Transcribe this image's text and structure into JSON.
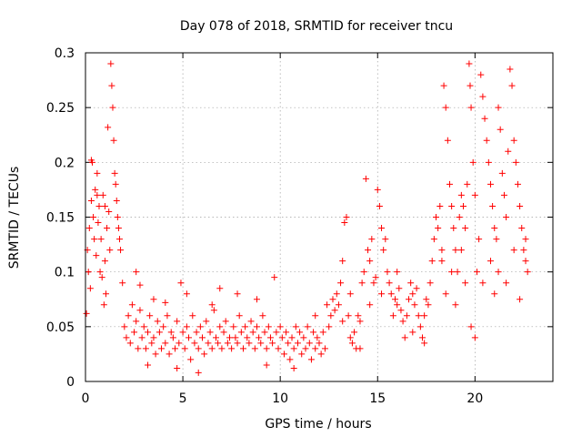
{
  "chart_data": {
    "type": "scatter",
    "title": "Day 078 of 2018, SRMTID for receiver tncu",
    "xlabel": "GPS time / hours",
    "ylabel": "SRMTID / TECUs",
    "xlim": [
      0,
      24
    ],
    "ylim": [
      0,
      0.3
    ],
    "grid": true,
    "marker": "+",
    "color": "#ff0000",
    "x_ticks": [
      0,
      5,
      10,
      15,
      20
    ],
    "x_tick_labels": [
      "0",
      "5",
      "10",
      "15",
      "20"
    ],
    "y_ticks": [
      0,
      0.05,
      0.1,
      0.15,
      0.2,
      0.25,
      0.3
    ],
    "y_tick_labels": [
      "0",
      "0.05",
      "0.1",
      "0.15",
      "0.2",
      "0.25",
      "0.3"
    ],
    "series": [
      {
        "points": [
          [
            0.05,
            0.062
          ],
          [
            0.1,
            0.12
          ],
          [
            0.2,
            0.14
          ],
          [
            0.3,
            0.165
          ],
          [
            0.35,
            0.2
          ],
          [
            0.4,
            0.15
          ],
          [
            0.5,
            0.175
          ],
          [
            0.6,
            0.19
          ],
          [
            0.7,
            0.16
          ],
          [
            0.8,
            0.13
          ],
          [
            0.9,
            0.17
          ],
          [
            1.0,
            0.11
          ],
          [
            1.1,
            0.14
          ],
          [
            1.2,
            0.155
          ],
          [
            1.3,
            0.29
          ],
          [
            1.35,
            0.27
          ],
          [
            1.4,
            0.25
          ],
          [
            1.45,
            0.22
          ],
          [
            1.5,
            0.19
          ],
          [
            1.55,
            0.18
          ],
          [
            1.6,
            0.165
          ],
          [
            1.7,
            0.14
          ],
          [
            1.8,
            0.12
          ],
          [
            1.9,
            0.09
          ],
          [
            0.15,
            0.1
          ],
          [
            0.25,
            0.085
          ],
          [
            0.45,
            0.13
          ],
          [
            0.55,
            0.115
          ],
          [
            0.65,
            0.145
          ],
          [
            0.75,
            0.1
          ],
          [
            0.85,
            0.095
          ],
          [
            0.95,
            0.07
          ],
          [
            1.05,
            0.08
          ],
          [
            1.15,
            0.232
          ],
          [
            1.25,
            0.12
          ],
          [
            1.65,
            0.15
          ],
          [
            1.75,
            0.13
          ],
          [
            0.3,
            0.202
          ],
          [
            0.6,
            0.17
          ],
          [
            1.0,
            0.16
          ],
          [
            2.0,
            0.05
          ],
          [
            2.1,
            0.04
          ],
          [
            2.2,
            0.06
          ],
          [
            2.3,
            0.035
          ],
          [
            2.4,
            0.07
          ],
          [
            2.5,
            0.045
          ],
          [
            2.6,
            0.055
          ],
          [
            2.7,
            0.03
          ],
          [
            2.8,
            0.065
          ],
          [
            2.9,
            0.04
          ],
          [
            3.0,
            0.05
          ],
          [
            3.1,
            0.03
          ],
          [
            3.2,
            0.045
          ],
          [
            3.3,
            0.06
          ],
          [
            3.4,
            0.035
          ],
          [
            3.5,
            0.04
          ],
          [
            3.6,
            0.025
          ],
          [
            3.7,
            0.055
          ],
          [
            3.8,
            0.045
          ],
          [
            3.9,
            0.03
          ],
          [
            4.0,
            0.05
          ],
          [
            4.1,
            0.035
          ],
          [
            4.2,
            0.06
          ],
          [
            4.3,
            0.025
          ],
          [
            4.4,
            0.045
          ],
          [
            4.5,
            0.04
          ],
          [
            4.6,
            0.03
          ],
          [
            4.7,
            0.055
          ],
          [
            4.8,
            0.035
          ],
          [
            4.9,
            0.09
          ],
          [
            5.0,
            0.045
          ],
          [
            5.1,
            0.03
          ],
          [
            5.2,
            0.05
          ],
          [
            5.3,
            0.04
          ],
          [
            5.4,
            0.02
          ],
          [
            5.5,
            0.06
          ],
          [
            5.6,
            0.035
          ],
          [
            5.7,
            0.045
          ],
          [
            5.8,
            0.03
          ],
          [
            5.9,
            0.05
          ],
          [
            6.0,
            0.04
          ],
          [
            6.1,
            0.025
          ],
          [
            6.2,
            0.055
          ],
          [
            6.3,
            0.035
          ],
          [
            6.4,
            0.045
          ],
          [
            6.5,
            0.03
          ],
          [
            6.6,
            0.065
          ],
          [
            6.7,
            0.04
          ],
          [
            6.8,
            0.035
          ],
          [
            6.9,
            0.05
          ],
          [
            7.0,
            0.03
          ],
          [
            7.1,
            0.045
          ],
          [
            7.2,
            0.055
          ],
          [
            7.3,
            0.035
          ],
          [
            7.4,
            0.04
          ],
          [
            7.5,
            0.03
          ],
          [
            7.6,
            0.05
          ],
          [
            7.7,
            0.04
          ],
          [
            7.8,
            0.035
          ],
          [
            7.9,
            0.06
          ],
          [
            8.0,
            0.045
          ],
          [
            8.1,
            0.03
          ],
          [
            8.2,
            0.05
          ],
          [
            8.3,
            0.04
          ],
          [
            8.4,
            0.035
          ],
          [
            8.5,
            0.055
          ],
          [
            8.6,
            0.045
          ],
          [
            8.7,
            0.03
          ],
          [
            8.8,
            0.05
          ],
          [
            8.9,
            0.04
          ],
          [
            9.0,
            0.035
          ],
          [
            9.1,
            0.06
          ],
          [
            9.2,
            0.045
          ],
          [
            9.3,
            0.03
          ],
          [
            9.4,
            0.05
          ],
          [
            9.5,
            0.04
          ],
          [
            9.6,
            0.035
          ],
          [
            9.7,
            0.095
          ],
          [
            9.8,
            0.045
          ],
          [
            9.9,
            0.03
          ],
          [
            10.0,
            0.05
          ],
          [
            10.1,
            0.04
          ],
          [
            10.2,
            0.025
          ],
          [
            10.3,
            0.045
          ],
          [
            10.4,
            0.035
          ],
          [
            10.5,
            0.02
          ],
          [
            10.6,
            0.04
          ],
          [
            10.7,
            0.03
          ],
          [
            10.8,
            0.05
          ],
          [
            10.9,
            0.035
          ],
          [
            11.0,
            0.045
          ],
          [
            11.1,
            0.025
          ],
          [
            11.2,
            0.04
          ],
          [
            11.3,
            0.03
          ],
          [
            11.4,
            0.05
          ],
          [
            11.5,
            0.035
          ],
          [
            11.6,
            0.02
          ],
          [
            11.7,
            0.045
          ],
          [
            11.8,
            0.03
          ],
          [
            11.9,
            0.04
          ],
          [
            12.0,
            0.035
          ],
          [
            12.1,
            0.025
          ],
          [
            12.2,
            0.045
          ],
          [
            12.3,
            0.03
          ],
          [
            3.2,
            0.015
          ],
          [
            4.7,
            0.012
          ],
          [
            5.8,
            0.008
          ],
          [
            6.5,
            0.07
          ],
          [
            7.8,
            0.08
          ],
          [
            8.8,
            0.075
          ],
          [
            9.3,
            0.015
          ],
          [
            10.7,
            0.012
          ],
          [
            11.8,
            0.06
          ],
          [
            12.4,
            0.07
          ],
          [
            2.6,
            0.1
          ],
          [
            2.8,
            0.088
          ],
          [
            3.5,
            0.075
          ],
          [
            4.1,
            0.072
          ],
          [
            5.2,
            0.08
          ],
          [
            6.9,
            0.085
          ],
          [
            12.5,
            0.05
          ],
          [
            12.6,
            0.06
          ],
          [
            12.7,
            0.075
          ],
          [
            12.8,
            0.065
          ],
          [
            12.9,
            0.08
          ],
          [
            13.0,
            0.07
          ],
          [
            13.1,
            0.09
          ],
          [
            13.2,
            0.055
          ],
          [
            13.3,
            0.145
          ],
          [
            13.4,
            0.15
          ],
          [
            13.5,
            0.06
          ],
          [
            13.6,
            0.04
          ],
          [
            13.7,
            0.035
          ],
          [
            13.8,
            0.045
          ],
          [
            13.9,
            0.03
          ],
          [
            14.0,
            0.06
          ],
          [
            14.1,
            0.055
          ],
          [
            14.2,
            0.09
          ],
          [
            14.3,
            0.1
          ],
          [
            14.4,
            0.185
          ],
          [
            14.5,
            0.12
          ],
          [
            14.6,
            0.11
          ],
          [
            14.7,
            0.13
          ],
          [
            14.8,
            0.09
          ],
          [
            14.9,
            0.095
          ],
          [
            15.0,
            0.175
          ],
          [
            15.1,
            0.16
          ],
          [
            15.2,
            0.14
          ],
          [
            15.3,
            0.12
          ],
          [
            15.4,
            0.13
          ],
          [
            15.5,
            0.1
          ],
          [
            15.6,
            0.09
          ],
          [
            15.7,
            0.08
          ],
          [
            15.8,
            0.06
          ],
          [
            15.9,
            0.075
          ],
          [
            16.0,
            0.07
          ],
          [
            16.1,
            0.085
          ],
          [
            16.2,
            0.065
          ],
          [
            16.3,
            0.055
          ],
          [
            16.4,
            0.04
          ],
          [
            16.5,
            0.06
          ],
          [
            16.6,
            0.075
          ],
          [
            16.7,
            0.09
          ],
          [
            16.8,
            0.08
          ],
          [
            16.9,
            0.07
          ],
          [
            17.0,
            0.085
          ],
          [
            17.1,
            0.06
          ],
          [
            17.2,
            0.05
          ],
          [
            17.3,
            0.04
          ],
          [
            17.4,
            0.06
          ],
          [
            17.5,
            0.075
          ],
          [
            17.6,
            0.07
          ],
          [
            17.7,
            0.09
          ],
          [
            17.8,
            0.11
          ],
          [
            17.9,
            0.13
          ],
          [
            18.0,
            0.15
          ],
          [
            13.2,
            0.11
          ],
          [
            13.6,
            0.08
          ],
          [
            14.1,
            0.03
          ],
          [
            14.6,
            0.07
          ],
          [
            15.2,
            0.08
          ],
          [
            16.0,
            0.1
          ],
          [
            16.8,
            0.045
          ],
          [
            17.4,
            0.035
          ],
          [
            18.1,
            0.14
          ],
          [
            18.2,
            0.16
          ],
          [
            18.3,
            0.12
          ],
          [
            18.4,
            0.27
          ],
          [
            18.5,
            0.25
          ],
          [
            18.6,
            0.22
          ],
          [
            18.7,
            0.18
          ],
          [
            18.8,
            0.16
          ],
          [
            18.9,
            0.14
          ],
          [
            19.0,
            0.12
          ],
          [
            19.1,
            0.1
          ],
          [
            19.2,
            0.15
          ],
          [
            19.3,
            0.17
          ],
          [
            19.4,
            0.16
          ],
          [
            19.5,
            0.14
          ],
          [
            19.6,
            0.18
          ],
          [
            19.7,
            0.29
          ],
          [
            19.75,
            0.27
          ],
          [
            19.8,
            0.25
          ],
          [
            19.9,
            0.2
          ],
          [
            20.0,
            0.17
          ],
          [
            20.1,
            0.1
          ],
          [
            20.2,
            0.13
          ],
          [
            20.3,
            0.28
          ],
          [
            20.4,
            0.26
          ],
          [
            20.5,
            0.24
          ],
          [
            20.6,
            0.22
          ],
          [
            20.7,
            0.2
          ],
          [
            20.8,
            0.18
          ],
          [
            20.9,
            0.16
          ],
          [
            21.0,
            0.14
          ],
          [
            21.1,
            0.13
          ],
          [
            21.2,
            0.25
          ],
          [
            21.3,
            0.23
          ],
          [
            21.4,
            0.19
          ],
          [
            21.5,
            0.17
          ],
          [
            21.6,
            0.15
          ],
          [
            21.7,
            0.21
          ],
          [
            21.8,
            0.285
          ],
          [
            21.9,
            0.27
          ],
          [
            22.0,
            0.22
          ],
          [
            22.1,
            0.2
          ],
          [
            22.2,
            0.18
          ],
          [
            22.3,
            0.16
          ],
          [
            22.4,
            0.14
          ],
          [
            22.5,
            0.12
          ],
          [
            22.6,
            0.11
          ],
          [
            22.7,
            0.1
          ],
          [
            18.5,
            0.08
          ],
          [
            19.0,
            0.07
          ],
          [
            19.5,
            0.09
          ],
          [
            19.8,
            0.05
          ],
          [
            20.0,
            0.04
          ],
          [
            20.4,
            0.09
          ],
          [
            20.8,
            0.11
          ],
          [
            21.2,
            0.1
          ],
          [
            21.6,
            0.09
          ],
          [
            22.0,
            0.12
          ],
          [
            22.3,
            0.075
          ],
          [
            22.6,
            0.13
          ],
          [
            18.3,
            0.11
          ],
          [
            18.8,
            0.1
          ],
          [
            19.3,
            0.12
          ],
          [
            21.0,
            0.08
          ]
        ]
      }
    ]
  }
}
